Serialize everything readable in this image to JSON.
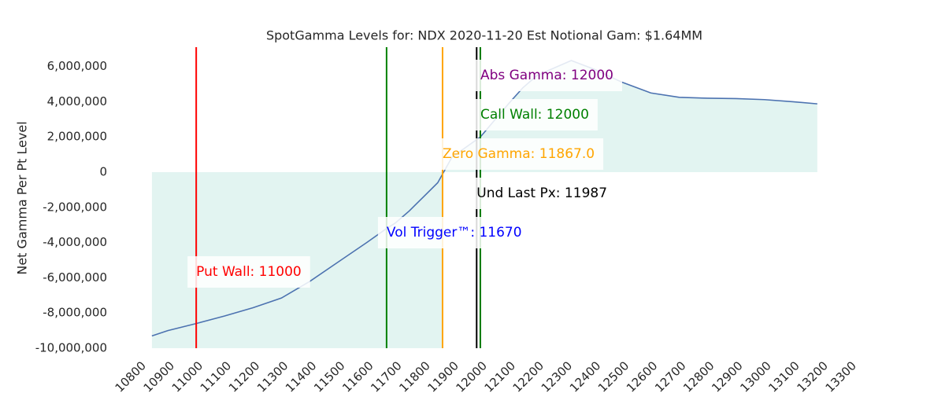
{
  "chart_data": {
    "type": "line",
    "title": "SpotGamma Levels for: NDX  2020-11-20 Est Notional Gam: $1.64MM",
    "y_label": "Net Gamma Per Pt Level",
    "x": [
      10844,
      10900,
      11000,
      11100,
      11200,
      11300,
      11400,
      11500,
      11600,
      11670,
      11700,
      11750,
      11800,
      11850,
      11900,
      12000,
      12100,
      12150,
      12200,
      12320,
      12400,
      12500,
      12600,
      12700,
      12800,
      12900,
      13000,
      13100,
      13186
    ],
    "series": [
      {
        "name": "Net Gamma",
        "color": "#4c72b0",
        "values": [
          -9300000,
          -9000000,
          -8600000,
          -8170000,
          -7700000,
          -7150000,
          -6200000,
          -5100000,
          -4000000,
          -3200000,
          -2900000,
          -2200000,
          -1400000,
          -600000,
          850000,
          2000000,
          3900000,
          4800000,
          5500000,
          6340000,
          5850000,
          5100000,
          4500000,
          4250000,
          4200000,
          4180000,
          4120000,
          4000000,
          3880000
        ]
      }
    ],
    "fill_color": "#e2f4f1",
    "levels": [
      {
        "label": "Abs Gamma: 12000",
        "value": 12000,
        "color": "#800080"
      },
      {
        "label": "Call Wall: 12000",
        "value": 12000,
        "color": "#008000"
      },
      {
        "label": "Zero Gamma: 11867.0",
        "value": 11867.0,
        "color": "#ffa500"
      },
      {
        "label": "Und Last Px: 11987",
        "value": 11987,
        "color": "#000000"
      },
      {
        "label": "Vol Trigger™: 11670",
        "value": 11670,
        "color": "#0000ff",
        "line_color": "#008000"
      },
      {
        "label": "Put Wall: 11000",
        "value": 11000,
        "color": "#ff0000"
      }
    ],
    "xlim": [
      10800,
      13300
    ],
    "xticks": [
      10800,
      10900,
      11000,
      11100,
      11200,
      11300,
      11400,
      11500,
      11600,
      11700,
      11800,
      11900,
      12000,
      12100,
      12200,
      12300,
      12400,
      12500,
      12600,
      12700,
      12800,
      12900,
      13000,
      13100,
      13200,
      13300
    ],
    "ylim": [
      -10000000,
      7100000
    ],
    "yticks": [
      {
        "value": -10000000,
        "label": "-10,000,000"
      },
      {
        "value": -8000000,
        "label": "-8,000,000"
      },
      {
        "value": -6000000,
        "label": "-6,000,000"
      },
      {
        "value": -4000000,
        "label": "-4,000,000"
      },
      {
        "value": -2000000,
        "label": "-2,000,000"
      },
      0,
      {
        "value": 2000000,
        "label": "2,000,000"
      },
      {
        "value": 4000000,
        "label": "4,000,000"
      },
      {
        "value": 6000000,
        "label": "6,000,000"
      }
    ]
  }
}
